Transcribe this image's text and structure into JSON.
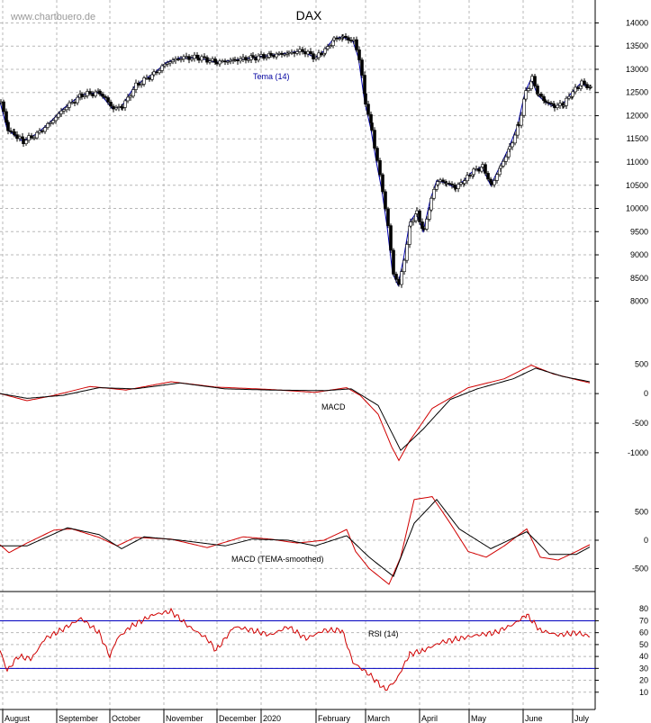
{
  "watermark": "www.chartbuero.de",
  "chart_data": [
    {
      "type": "candlestick",
      "title": "DAX",
      "indicator_label": "Tema (14)",
      "xlabel": "",
      "ylabel": "",
      "ylim": [
        7700,
        14300
      ],
      "yticks": [
        8000,
        8500,
        9000,
        9500,
        10000,
        10500,
        11000,
        11500,
        12000,
        12500,
        13000,
        13500,
        14000
      ],
      "months": [
        "August",
        "September",
        "October",
        "November",
        "December",
        "2020",
        "February",
        "March",
        "April",
        "May",
        "June",
        "July"
      ],
      "grid": true,
      "price_path": [
        [
          0,
          12300
        ],
        [
          8,
          11700
        ],
        [
          15,
          11600
        ],
        [
          25,
          11450
        ],
        [
          40,
          11600
        ],
        [
          55,
          11850
        ],
        [
          70,
          12150
        ],
        [
          90,
          12450
        ],
        [
          110,
          12500
        ],
        [
          125,
          12150
        ],
        [
          135,
          12200
        ],
        [
          150,
          12650
        ],
        [
          170,
          12900
        ],
        [
          185,
          13150
        ],
        [
          200,
          13250
        ],
        [
          220,
          13250
        ],
        [
          240,
          13150
        ],
        [
          260,
          13200
        ],
        [
          280,
          13250
        ],
        [
          300,
          13300
        ],
        [
          320,
          13350
        ],
        [
          335,
          13400
        ],
        [
          350,
          13250
        ],
        [
          360,
          13400
        ],
        [
          370,
          13650
        ],
        [
          380,
          13700
        ],
        [
          392,
          13600
        ],
        [
          398,
          13250
        ],
        [
          405,
          12300
        ],
        [
          412,
          11700
        ],
        [
          418,
          11000
        ],
        [
          424,
          10400
        ],
        [
          430,
          9600
        ],
        [
          436,
          8600
        ],
        [
          442,
          8350
        ],
        [
          448,
          8900
        ],
        [
          455,
          9700
        ],
        [
          462,
          9900
        ],
        [
          470,
          9500
        ],
        [
          478,
          10200
        ],
        [
          485,
          10600
        ],
        [
          495,
          10550
        ],
        [
          505,
          10450
        ],
        [
          515,
          10600
        ],
        [
          525,
          10800
        ],
        [
          535,
          10900
        ],
        [
          545,
          10500
        ],
        [
          555,
          10900
        ],
        [
          565,
          11300
        ],
        [
          575,
          11800
        ],
        [
          583,
          12500
        ],
        [
          590,
          12800
        ],
        [
          597,
          12450
        ],
        [
          605,
          12300
        ],
        [
          615,
          12200
        ],
        [
          625,
          12250
        ],
        [
          635,
          12500
        ],
        [
          645,
          12700
        ],
        [
          655,
          12600
        ]
      ]
    },
    {
      "type": "line",
      "title": "MACD",
      "ylim": [
        -1200,
        550
      ],
      "yticks": [
        500,
        0,
        -500,
        -1000
      ],
      "series": [
        {
          "color": "#d00000",
          "points": [
            [
              0,
              0
            ],
            [
              30,
              -120
            ],
            [
              60,
              -30
            ],
            [
              100,
              120
            ],
            [
              140,
              60
            ],
            [
              190,
              200
            ],
            [
              240,
              110
            ],
            [
              300,
              70
            ],
            [
              350,
              20
            ],
            [
              385,
              100
            ],
            [
              400,
              -30
            ],
            [
              420,
              -350
            ],
            [
              435,
              -900
            ],
            [
              443,
              -1130
            ],
            [
              455,
              -800
            ],
            [
              480,
              -250
            ],
            [
              520,
              100
            ],
            [
              560,
              250
            ],
            [
              590,
              480
            ],
            [
              615,
              330
            ],
            [
              655,
              180
            ]
          ]
        },
        {
          "color": "#000000",
          "points": [
            [
              0,
              0
            ],
            [
              30,
              -80
            ],
            [
              70,
              -30
            ],
            [
              110,
              100
            ],
            [
              150,
              80
            ],
            [
              200,
              180
            ],
            [
              250,
              80
            ],
            [
              300,
              60
            ],
            [
              360,
              50
            ],
            [
              390,
              80
            ],
            [
              420,
              -200
            ],
            [
              445,
              -960
            ],
            [
              470,
              -600
            ],
            [
              500,
              -100
            ],
            [
              530,
              80
            ],
            [
              570,
              250
            ],
            [
              595,
              430
            ],
            [
              625,
              290
            ],
            [
              655,
              200
            ]
          ]
        }
      ]
    },
    {
      "type": "line",
      "title": "MACD (TEMA-smoothed)",
      "ylim": [
        -780,
        780
      ],
      "yticks": [
        500,
        0,
        -500
      ],
      "series": [
        {
          "color": "#d00000",
          "points": [
            [
              0,
              -80
            ],
            [
              10,
              -220
            ],
            [
              30,
              -50
            ],
            [
              60,
              180
            ],
            [
              80,
              200
            ],
            [
              110,
              50
            ],
            [
              130,
              -100
            ],
            [
              150,
              50
            ],
            [
              190,
              20
            ],
            [
              230,
              -130
            ],
            [
              270,
              60
            ],
            [
              300,
              20
            ],
            [
              330,
              -50
            ],
            [
              360,
              0
            ],
            [
              385,
              190
            ],
            [
              395,
              -200
            ],
            [
              410,
              -500
            ],
            [
              432,
              -780
            ],
            [
              445,
              -300
            ],
            [
              460,
              720
            ],
            [
              480,
              770
            ],
            [
              500,
              300
            ],
            [
              520,
              -200
            ],
            [
              540,
              -300
            ],
            [
              560,
              -100
            ],
            [
              585,
              200
            ],
            [
              600,
              -300
            ],
            [
              620,
              -350
            ],
            [
              640,
              -200
            ],
            [
              655,
              -80
            ]
          ]
        },
        {
          "color": "#000000",
          "points": [
            [
              0,
              -100
            ],
            [
              30,
              -100
            ],
            [
              75,
              220
            ],
            [
              110,
              100
            ],
            [
              135,
              -150
            ],
            [
              160,
              60
            ],
            [
              200,
              0
            ],
            [
              250,
              -100
            ],
            [
              280,
              20
            ],
            [
              320,
              0
            ],
            [
              350,
              -100
            ],
            [
              385,
              80
            ],
            [
              410,
              -300
            ],
            [
              437,
              -640
            ],
            [
              460,
              300
            ],
            [
              485,
              720
            ],
            [
              510,
              200
            ],
            [
              545,
              -150
            ],
            [
              585,
              150
            ],
            [
              610,
              -250
            ],
            [
              640,
              -250
            ],
            [
              655,
              -120
            ]
          ]
        }
      ]
    },
    {
      "type": "line",
      "title": "RSI (14)",
      "ylim": [
        0,
        90
      ],
      "yticks": [
        10,
        20,
        30,
        40,
        50,
        60,
        70,
        80
      ],
      "reference_lines": [
        30,
        70
      ],
      "series": [
        {
          "color": "#d00000",
          "points": [
            [
              0,
              45
            ],
            [
              8,
              28
            ],
            [
              20,
              40
            ],
            [
              35,
              38
            ],
            [
              50,
              55
            ],
            [
              70,
              63
            ],
            [
              90,
              72
            ],
            [
              110,
              60
            ],
            [
              122,
              40
            ],
            [
              130,
              55
            ],
            [
              145,
              65
            ],
            [
              170,
              75
            ],
            [
              190,
              78
            ],
            [
              210,
              65
            ],
            [
              230,
              55
            ],
            [
              240,
              45
            ],
            [
              260,
              65
            ],
            [
              280,
              62
            ],
            [
              300,
              58
            ],
            [
              320,
              65
            ],
            [
              340,
              55
            ],
            [
              360,
              62
            ],
            [
              380,
              62
            ],
            [
              392,
              35
            ],
            [
              410,
              25
            ],
            [
              428,
              12
            ],
            [
              440,
              20
            ],
            [
              455,
              42
            ],
            [
              470,
              45
            ],
            [
              490,
              52
            ],
            [
              510,
              55
            ],
            [
              530,
              58
            ],
            [
              550,
              60
            ],
            [
              570,
              67
            ],
            [
              585,
              75
            ],
            [
              600,
              62
            ],
            [
              620,
              58
            ],
            [
              640,
              60
            ],
            [
              655,
              57
            ]
          ]
        }
      ]
    }
  ]
}
